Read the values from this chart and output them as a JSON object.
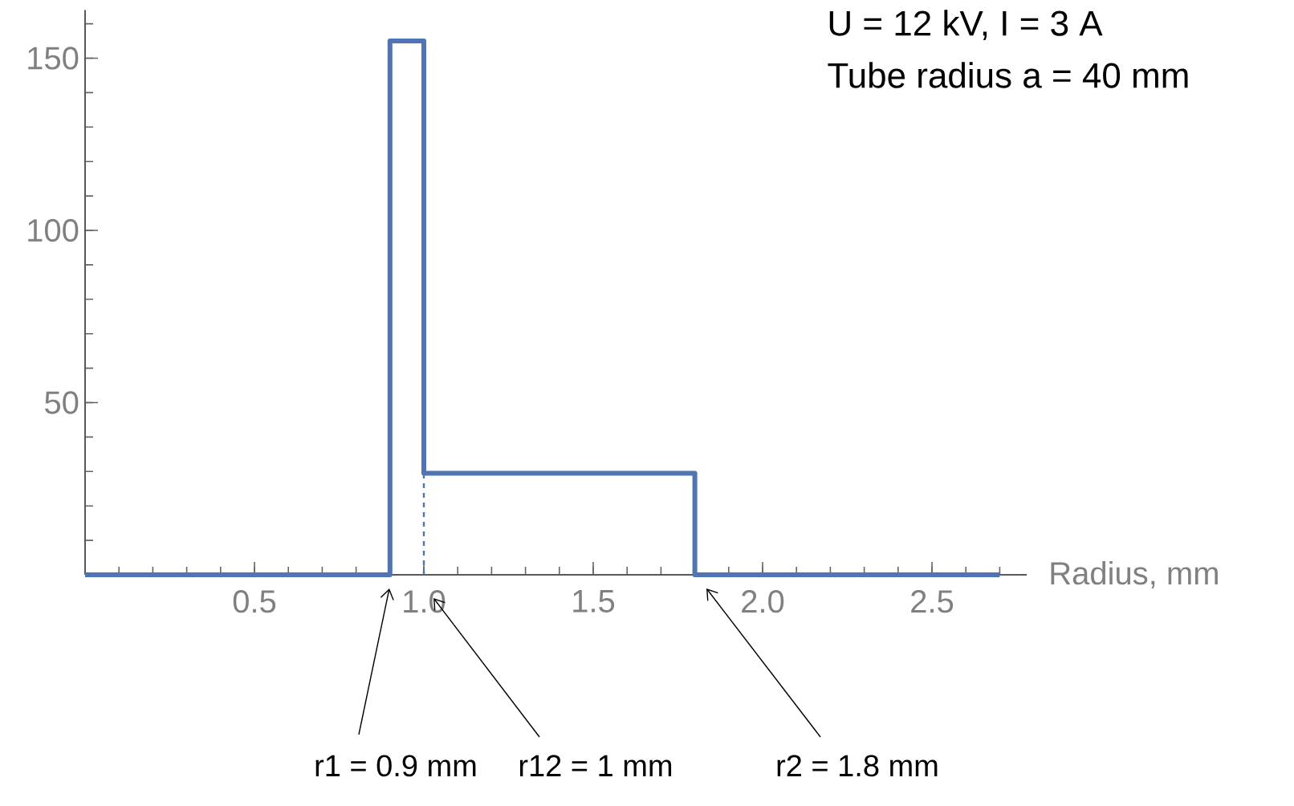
{
  "chart_data": {
    "type": "step",
    "xlabel": "Radius, mm",
    "xlim": [
      0,
      2.78
    ],
    "ylim": [
      0,
      164
    ],
    "xticks": [
      0.5,
      {
        "value": 1,
        "label": "1.0"
      },
      1.5,
      {
        "value": 2,
        "label": "2.0"
      },
      2.5
    ],
    "yticks": [
      50,
      100,
      150
    ],
    "series": [
      {
        "color": "#5075b4",
        "x": [
          0,
          0.9,
          1.0,
          1.8,
          2.7
        ],
        "values": [
          0,
          155,
          29.5,
          0,
          0
        ]
      },
      {
        "type": "line",
        "color": "#5075b4",
        "line_style": "dashed",
        "x": [
          1.0,
          1.0
        ],
        "values": [
          0,
          29.5
        ]
      }
    ],
    "annotations": [
      "U  = 12 kV, I = 3 A",
      "Tube radius a  = 40 mm",
      "r1 = 0.9 mm",
      "r12 = 1 mm",
      "r2 = 1.8 mm"
    ]
  }
}
